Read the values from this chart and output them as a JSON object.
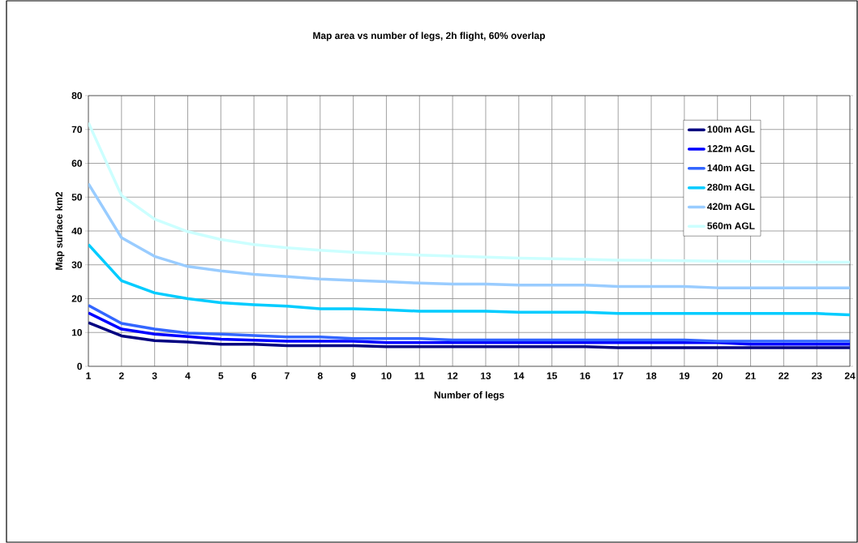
{
  "chart_data": {
    "type": "line",
    "title": "Map area vs number of legs, 2h flight, 60% overlap",
    "xlabel": "Number of legs",
    "ylabel": "Map surface km2",
    "x": [
      1,
      2,
      3,
      4,
      5,
      6,
      7,
      8,
      9,
      10,
      11,
      12,
      13,
      14,
      15,
      16,
      17,
      18,
      19,
      20,
      21,
      22,
      23,
      24
    ],
    "xlim": [
      1,
      24
    ],
    "xticks": [
      1,
      2,
      3,
      4,
      5,
      6,
      7,
      8,
      9,
      10,
      11,
      12,
      13,
      14,
      15,
      16,
      17,
      18,
      19,
      20,
      21,
      22,
      23,
      24
    ],
    "ylim": [
      0,
      80
    ],
    "yticks": [
      0,
      10,
      20,
      30,
      40,
      50,
      60,
      70,
      80
    ],
    "grid": true,
    "legend": "top right",
    "marker": "none",
    "series": [
      {
        "name": "100m AGL",
        "color": "#000080",
        "values": [
          12.9,
          9,
          7.6,
          7.2,
          6.5,
          6.5,
          6.1,
          6.1,
          6.1,
          5.8,
          5.8,
          5.8,
          5.8,
          5.8,
          5.8,
          5.8,
          5.5,
          5.5,
          5.5,
          5.5,
          5.5,
          5.5,
          5.5,
          5.5
        ]
      },
      {
        "name": "122m AGL",
        "color": "#0000ff",
        "values": [
          15.8,
          11,
          9.5,
          8.8,
          8,
          7.7,
          7.4,
          7.4,
          7.4,
          7,
          7,
          7,
          7,
          7,
          7,
          7,
          7,
          7,
          7,
          7,
          6.5,
          6.5,
          6.5,
          6.5
        ]
      },
      {
        "name": "140m AGL",
        "color": "#3366ff",
        "values": [
          18,
          12.7,
          11,
          9.8,
          9.5,
          9.1,
          8.7,
          8.7,
          8.2,
          8.2,
          8.2,
          7.8,
          7.8,
          7.8,
          7.8,
          7.8,
          7.8,
          7.8,
          7.8,
          7.4,
          7.4,
          7.4,
          7.4,
          7.4
        ]
      },
      {
        "name": "280m AGL",
        "color": "#00ccff",
        "values": [
          36,
          25.3,
          21.7,
          20,
          18.8,
          18.2,
          17.8,
          17,
          17,
          16.7,
          16.3,
          16.3,
          16.3,
          16,
          16,
          16,
          15.6,
          15.6,
          15.6,
          15.6,
          15.6,
          15.6,
          15.6,
          15.2
        ]
      },
      {
        "name": "420m AGL",
        "color": "#99ccff",
        "values": [
          54,
          38,
          32.5,
          29.5,
          28.2,
          27.2,
          26.5,
          25.8,
          25.4,
          25,
          24.6,
          24.3,
          24.3,
          24,
          24,
          24,
          23.6,
          23.6,
          23.6,
          23.2,
          23.2,
          23.2,
          23.2,
          23.2
        ]
      },
      {
        "name": "560m AGL",
        "color": "#ccffff",
        "values": [
          72,
          50.5,
          43.5,
          39.8,
          37.5,
          36,
          35,
          34.3,
          33.7,
          33.3,
          32.9,
          32.6,
          32.3,
          32,
          31.8,
          31.6,
          31.4,
          31.3,
          31.2,
          31.1,
          31,
          30.9,
          30.8,
          30.8
        ]
      }
    ]
  }
}
